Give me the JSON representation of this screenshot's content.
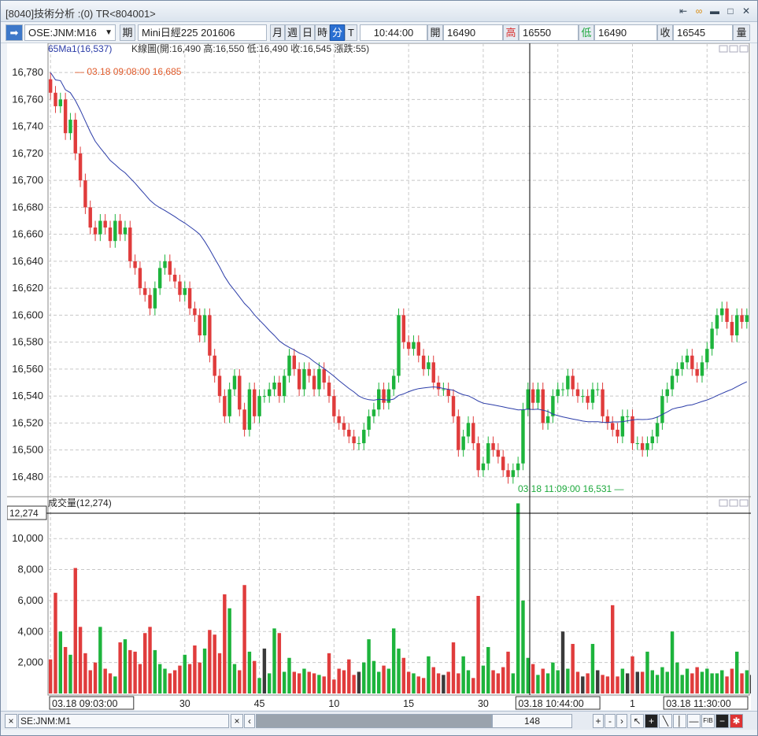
{
  "window": {
    "title": "[8040]技術分析 :(0) TR<804001>"
  },
  "toolbar": {
    "symbol": "OSE:JNM:M16",
    "period_label": "期",
    "contract": "Mini日經225 201606",
    "periods": [
      "月",
      "週",
      "日",
      "時",
      "分",
      "T"
    ],
    "selected_period": "分",
    "time": "10:44:00",
    "open_label": "開",
    "open": "16490",
    "high_label": "高",
    "high": "16550",
    "low_label": "低",
    "low": "16490",
    "close_label": "收",
    "close": "16545",
    "volume_label": "量"
  },
  "price_panel": {
    "ma_label": "65Ma1(16,537)",
    "kline_label": "K線圖(開:16,490 高:16,550 低:16,490 收:16,545 漲跌:55)",
    "max_note": "— 03.18 09:08:00  16,685",
    "min_note": "03.18 11:09:00  16,531 —"
  },
  "volume_panel": {
    "label": "成交量(12,274)",
    "current": "12,274"
  },
  "status": {
    "symbol_field": "SE:JNM:M1",
    "bar_count": "148"
  },
  "colors": {
    "up": "#1db43c",
    "down": "#e03c3c",
    "neutral": "#3a3a3a",
    "ma": "#2b3ca8",
    "grid": "#c8c8c8"
  },
  "chart_data": [
    {
      "type": "candlestick",
      "title": "K線圖",
      "ylim": [
        16470,
        16790
      ],
      "yticks": [
        16480,
        16500,
        16520,
        16540,
        16560,
        16580,
        16600,
        16620,
        16640,
        16660,
        16680,
        16700,
        16720,
        16740,
        16760,
        16780
      ],
      "xtick_labels": [
        "03.18 09:03:00",
        "30",
        "45",
        "10",
        "15",
        "30",
        "03.18 10:44:00",
        "1",
        "03.18 11:30:00"
      ],
      "series": [
        {
          "name": "K線圖",
          "ohlc_close": [
            16765,
            16755,
            16760,
            16735,
            16745,
            16720,
            16700,
            16680,
            16665,
            16660,
            16670,
            16665,
            16655,
            16670,
            16660,
            16665,
            16640,
            16635,
            16620,
            16615,
            16605,
            16620,
            16635,
            16640,
            16630,
            16625,
            16615,
            16620,
            16605,
            16600,
            16585,
            16600,
            16570,
            16555,
            16540,
            16525,
            16545,
            16555,
            16530,
            16515,
            16545,
            16525,
            16540,
            16540,
            16545,
            16550,
            16540,
            16555,
            16570,
            16560,
            16545,
            16560,
            16555,
            16545,
            16560,
            16550,
            16540,
            16525,
            16520,
            16515,
            16510,
            16505,
            16505,
            16515,
            16525,
            16530,
            16545,
            16535,
            16545,
            16555,
            16600,
            16580,
            16575,
            16580,
            16570,
            16560,
            16565,
            16550,
            16545,
            16545,
            16540,
            16525,
            16500,
            16510,
            16520,
            16505,
            16485,
            16490,
            16505,
            16500,
            16495,
            16485,
            16480,
            16485,
            16490,
            16530,
            16545,
            16535,
            16545,
            16520,
            16525,
            16540,
            16545,
            16545,
            16555,
            16545,
            16540,
            16540,
            16535,
            16545,
            16545,
            16525,
            16520,
            16515,
            16510,
            16525,
            16525,
            16505,
            16505,
            16500,
            16505,
            16510,
            16520,
            16540,
            16545,
            16555,
            16560,
            16565,
            16570,
            16560,
            16555,
            16565,
            16575,
            16590,
            16600,
            16605,
            16595,
            16585,
            16600,
            16595,
            16600
          ]
        },
        {
          "name": "65Ma1",
          "values": [
            16680,
            16550,
            16531,
            16537
          ]
        }
      ]
    },
    {
      "type": "bar",
      "title": "成交量",
      "ylim": [
        0,
        12500
      ],
      "yticks": [
        2000,
        4000,
        6000,
        8000,
        10000,
        12274
      ],
      "series": [
        {
          "name": "成交量",
          "values": [
            2200,
            6500,
            4000,
            3000,
            2500,
            8100,
            4300,
            2600,
            1500,
            2000,
            4300,
            1600,
            1300,
            1100,
            3300,
            3500,
            2800,
            2700,
            1900,
            3900,
            4300,
            2800,
            1900,
            1600,
            1300,
            1500,
            1800,
            2500,
            1900,
            3100,
            2000,
            2900,
            4100,
            3800,
            2600,
            6400,
            5500,
            1900,
            1500,
            7000,
            2700,
            2100,
            1000,
            2900,
            1300,
            4200,
            3900,
            1400,
            2300,
            1400,
            1300,
            1600,
            1400,
            1300,
            1200,
            1100,
            2600,
            900,
            1600,
            1500,
            2200,
            1200,
            1400,
            2000,
            3500,
            2100,
            1400,
            1800,
            1600,
            4200,
            2900,
            2300,
            1400,
            1300,
            1100,
            1000,
            2400,
            1700,
            1300,
            1200,
            1400,
            3300,
            1300,
            2400,
            1500,
            1000,
            6300,
            1800,
            3000,
            1500,
            1300,
            1700,
            2700,
            1300,
            12274,
            6000,
            2300,
            1900,
            1200,
            1600,
            1300,
            2000,
            1500,
            4000,
            1600,
            3200,
            1400,
            1100,
            1300,
            3200,
            1500,
            1200,
            1100,
            5700,
            1100,
            1600,
            1300,
            2400,
            1400,
            1400,
            2700,
            1500,
            1200,
            1700,
            1400,
            4000,
            2000,
            1200,
            1600,
            1300,
            1700,
            1400,
            1600,
            1300,
            1300,
            1500,
            1100,
            1600,
            2700,
            1300,
            1500,
            1200,
            1600,
            1400,
            1000
          ]
        }
      ]
    }
  ]
}
